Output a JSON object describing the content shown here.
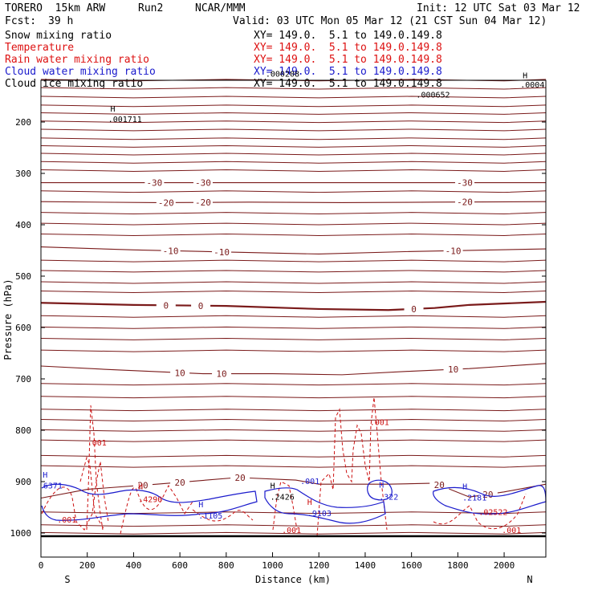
{
  "header": {
    "model": "TORERO  15km ARW",
    "run": "Run2",
    "org": "NCAR/MMM",
    "init": "Init: 12 UTC Sat 03 Mar 12",
    "fcst_label": "Fcst:",
    "fcst_value": "39 h",
    "valid": "Valid: 03 UTC Mon 05 Mar 12 (21 CST Sun 04 Mar 12)"
  },
  "legend": [
    {
      "name": "Snow mixing ratio",
      "color": "#000000",
      "xy": "XY= 149.0.  5.1 to 149.0.149.8"
    },
    {
      "name": "Temperature",
      "color": "#cc1111",
      "xy": "XY= 149.0.  5.1 to 149.0.149.8"
    },
    {
      "name": "Rain water mixing ratio",
      "color": "#cc1111",
      "xy": "XY= 149.0.  5.1 to 149.0.149.8"
    },
    {
      "name": "Cloud water mixing ratio",
      "color": "#1a1acc",
      "xy": "XY= 149.0.  5.1 to 149.0.149.8"
    },
    {
      "name": "Cloud ice mixing ratio",
      "color": "#000000",
      "xy": "XY= 149.0.  5.1 to 149.0.149.8"
    }
  ],
  "chart_data": {
    "type": "line",
    "xlabel": "Distance (km)",
    "ylabel": "Pressure (hPa)",
    "xlim": [
      0,
      2180
    ],
    "ylim": [
      100,
      1050
    ],
    "x_ticks": [
      0,
      200,
      400,
      600,
      800,
      1000,
      1200,
      1400,
      1600,
      1800,
      2000
    ],
    "y_ticks": [
      200,
      300,
      400,
      500,
      600,
      700,
      800,
      900,
      1000
    ],
    "x_ends": {
      "left": "S",
      "right": "N"
    },
    "temperature_contours": [
      {
        "label": "-30",
        "points": [
          [
            0,
            318
          ],
          [
            500,
            318
          ],
          [
            900,
            318
          ],
          [
            1300,
            318
          ],
          [
            1800,
            318
          ],
          [
            2180,
            318
          ]
        ],
        "label_x": [
          490,
          700,
          1830
        ]
      },
      {
        "label": "-20",
        "points": [
          [
            0,
            355
          ],
          [
            500,
            357
          ],
          [
            900,
            356
          ],
          [
            1300,
            357
          ],
          [
            1700,
            356
          ],
          [
            2180,
            355
          ]
        ],
        "label_x": [
          540,
          700,
          1830
        ]
      },
      {
        "label": "-10",
        "points": [
          [
            0,
            443
          ],
          [
            400,
            449
          ],
          [
            800,
            453
          ],
          [
            1200,
            457
          ],
          [
            1600,
            452
          ],
          [
            2180,
            447
          ]
        ],
        "label_x": [
          560,
          780,
          1780
        ]
      },
      {
        "label": "0",
        "points": [
          [
            0,
            552
          ],
          [
            400,
            556
          ],
          [
            800,
            558
          ],
          [
            1200,
            564
          ],
          [
            1500,
            566
          ],
          [
            1700,
            562
          ],
          [
            1850,
            556
          ],
          [
            2180,
            550
          ]
        ],
        "label_x": [
          540,
          690,
          1610
        ]
      },
      {
        "label": "10",
        "points": [
          [
            0,
            675
          ],
          [
            300,
            682
          ],
          [
            700,
            690
          ],
          [
            1000,
            690
          ],
          [
            1300,
            692
          ],
          [
            1600,
            685
          ],
          [
            1850,
            680
          ],
          [
            2180,
            670
          ]
        ],
        "label_x": [
          600,
          780,
          1780
        ]
      },
      {
        "label": "20",
        "points": [
          [
            0,
            932
          ],
          [
            200,
            915
          ],
          [
            500,
            905
          ],
          [
            850,
            892
          ],
          [
            1100,
            897
          ],
          [
            1200,
            905
          ],
          [
            1500,
            905
          ],
          [
            1700,
            903
          ],
          [
            1850,
            930
          ],
          [
            2000,
            920
          ],
          [
            2180,
            905
          ]
        ],
        "label_x": [
          440,
          600,
          860,
          1720,
          1930
        ]
      }
    ],
    "annotations": [
      {
        "text": "H",
        "x": 8,
        "y": 892,
        "color": "#1a1acc"
      },
      {
        "text": "6371",
        "x": 10,
        "y": 913,
        "color": "#1a1acc"
      },
      {
        "text": "H",
        "x": 420,
        "y": 915,
        "color": "#cc1111"
      },
      {
        "text": ".4290",
        "x": 420,
        "y": 940,
        "color": "#cc1111"
      },
      {
        "text": "H",
        "x": 680,
        "y": 950,
        "color": "#1a1acc"
      },
      {
        "text": ".1105",
        "x": 680,
        "y": 972,
        "color": "#1a1acc"
      },
      {
        "text": "H",
        "x": 990,
        "y": 913,
        "color": "#000000"
      },
      {
        "text": ".2426",
        "x": 990,
        "y": 935,
        "color": "#000000"
      },
      {
        "text": "H",
        "x": 1150,
        "y": 945,
        "color": "#cc1111"
      },
      {
        "text": ".9103",
        "x": 1150,
        "y": 967,
        "color": "#1a1acc"
      },
      {
        "text": "H",
        "x": 1460,
        "y": 912,
        "color": "#1a1acc"
      },
      {
        "text": ".322",
        "x": 1460,
        "y": 935,
        "color": "#1a1acc"
      },
      {
        "text": "H",
        "x": 1820,
        "y": 915,
        "color": "#1a1acc"
      },
      {
        "text": ".2181",
        "x": 1820,
        "y": 937,
        "color": "#1a1acc"
      },
      {
        "text": ".02522",
        "x": 1890,
        "y": 965,
        "color": "#cc1111"
      },
      {
        "text": ".001",
        "x": 200,
        "y": 830,
        "color": "#cc1111"
      },
      {
        "text": ".001",
        "x": 70,
        "y": 980,
        "color": "#cc1111"
      },
      {
        "text": ".001",
        "x": 1420,
        "y": 790,
        "color": "#cc1111"
      },
      {
        "text": ".001",
        "x": 1040,
        "y": 1000,
        "color": "#cc1111"
      },
      {
        "text": ".001",
        "x": 1120,
        "y": 905,
        "color": "#1a1acc"
      },
      {
        "text": ".001",
        "x": 1990,
        "y": 1000,
        "color": "#cc1111"
      },
      {
        "text": "H",
        "x": 300,
        "y": 180,
        "color": "#000000"
      },
      {
        "text": ".001711",
        "x": 290,
        "y": 200,
        "color": "#000000"
      },
      {
        "text": "H",
        "x": 2080,
        "y": 115,
        "color": "#000000"
      },
      {
        "text": ".0004",
        "x": 2070,
        "y": 133,
        "color": "#000000"
      },
      {
        "text": ".000652",
        "x": 1620,
        "y": 152,
        "color": "#000000"
      },
      {
        "text": ".000208",
        "x": 970,
        "y": 112,
        "color": "#000000"
      }
    ]
  }
}
